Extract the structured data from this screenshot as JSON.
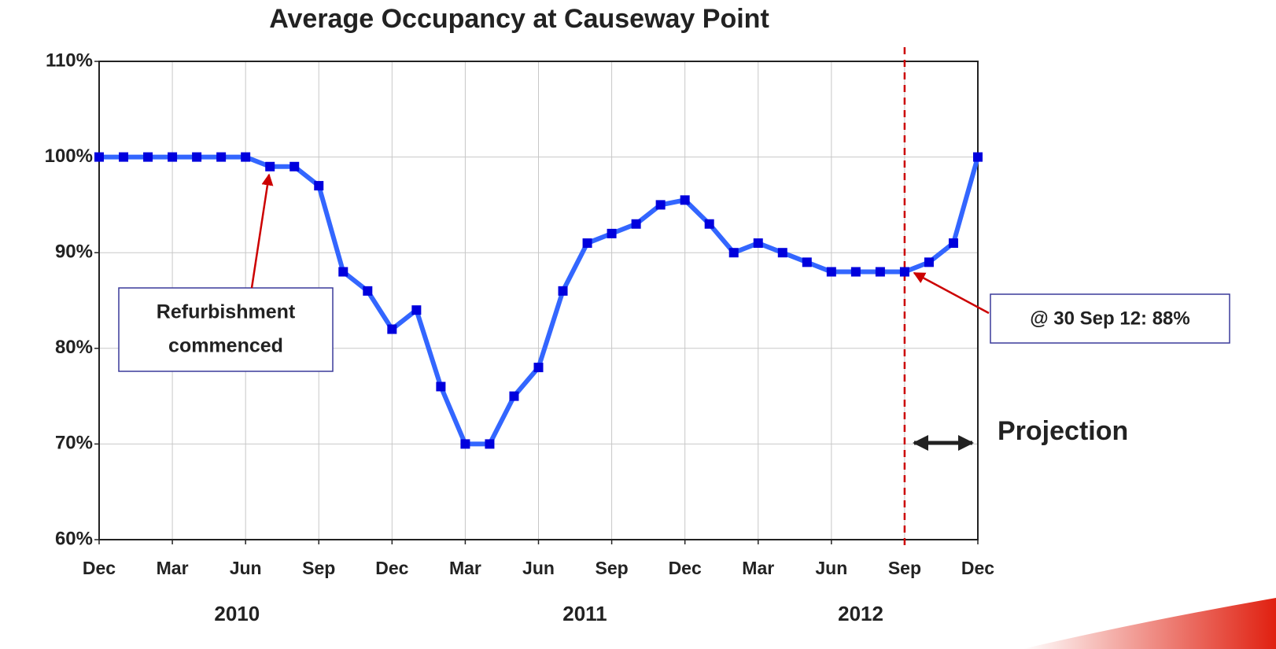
{
  "chart_data": {
    "type": "line",
    "title": "Average Occupancy at Causeway Point",
    "categories": [
      "Dec",
      null,
      null,
      "Mar",
      null,
      null,
      "Jun",
      null,
      null,
      "Sep",
      null,
      null,
      "Dec",
      null,
      null,
      "Mar",
      null,
      null,
      "Jun",
      null,
      null,
      "Sep",
      null,
      null,
      "Dec",
      null,
      null,
      "Mar",
      null,
      null,
      "Jun",
      null,
      null,
      "Sep",
      null,
      null,
      "Dec"
    ],
    "series": [
      {
        "name": "Average Occupancy",
        "color": "#3366ff",
        "marker_color": "#0000dd",
        "values": [
          100,
          100,
          100,
          100,
          100,
          100,
          100,
          99,
          99,
          97,
          88,
          86,
          82,
          84,
          76,
          70,
          70,
          75,
          78,
          86,
          91,
          92,
          93,
          95,
          95.5,
          93,
          90,
          91,
          90,
          89,
          88,
          88,
          88,
          88,
          89,
          91,
          100
        ]
      }
    ],
    "ylim": [
      60,
      110
    ],
    "yticks": [
      {
        "value": 60,
        "label": "60%"
      },
      {
        "value": 70,
        "label": "70%"
      },
      {
        "value": 80,
        "label": "80%"
      },
      {
        "value": 90,
        "label": "90%"
      },
      {
        "value": 100,
        "label": "100%"
      },
      {
        "value": 110,
        "label": "110%"
      }
    ],
    "grid": true,
    "year_labels": [
      "2010",
      "2011",
      "2012"
    ],
    "annotations": {
      "refurbishment": [
        "Refurbishment",
        "commenced"
      ],
      "current": "@ 30 Sep 12: 88%",
      "projection": "Projection"
    }
  }
}
